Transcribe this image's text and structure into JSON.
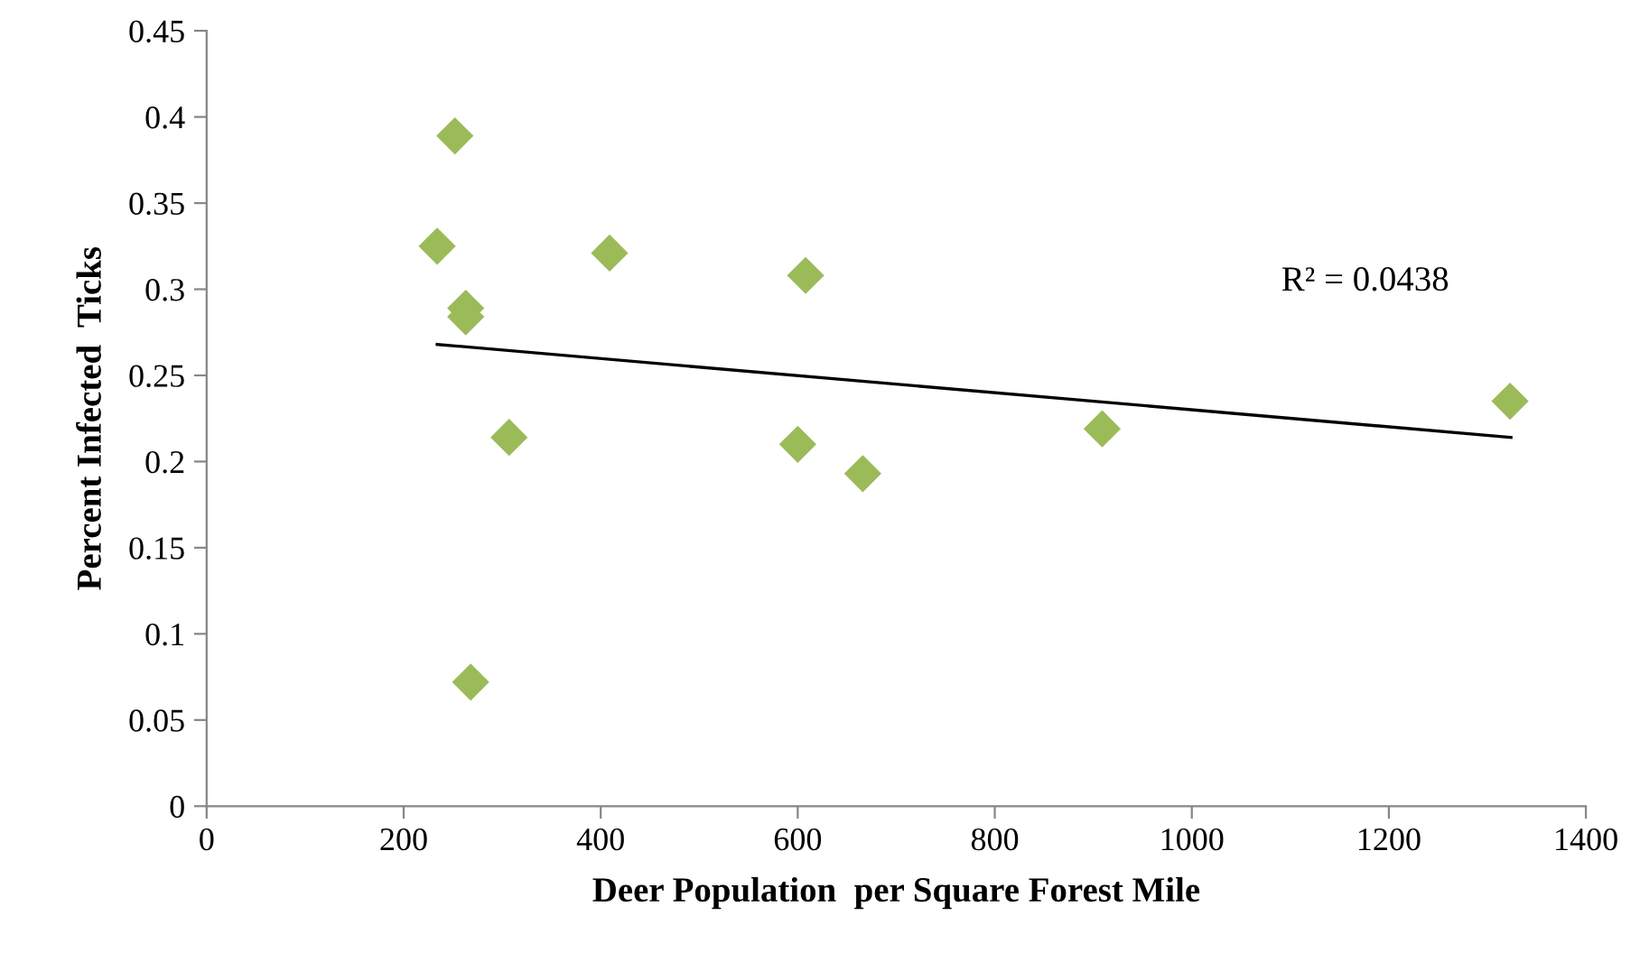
{
  "chart_data": {
    "type": "scatter",
    "xlabel": "Deer Population  per Square Forest Mile",
    "ylabel": "Percent Infected  Ticks",
    "xlim": [
      0,
      1400
    ],
    "xticks": [
      0,
      200,
      400,
      600,
      800,
      1000,
      1200,
      1400
    ],
    "ylim": [
      0,
      0.45
    ],
    "yticks": [
      0,
      0.05,
      0.1,
      0.15,
      0.2,
      0.25,
      0.3,
      0.35,
      0.4,
      0.45
    ],
    "grid": false,
    "legend": false,
    "marker": "diamond",
    "series": [
      {
        "color": "#9bbb59",
        "x": [
          252,
          234,
          263,
          263,
          409,
          608,
          307,
          600,
          666,
          268,
          909,
          1323
        ],
        "values": [
          0.389,
          0.325,
          0.289,
          0.284,
          0.321,
          0.308,
          0.214,
          0.21,
          0.193,
          0.072,
          0.219,
          0.235
        ]
      },
      {
        "type": "line",
        "color": "#000000",
        "x": [
          234,
          1324
        ],
        "values": [
          0.268,
          0.214
        ],
        "marker": "none",
        "line_style": "solid"
      }
    ],
    "annotations": [
      "R² = 0.0438"
    ]
  }
}
